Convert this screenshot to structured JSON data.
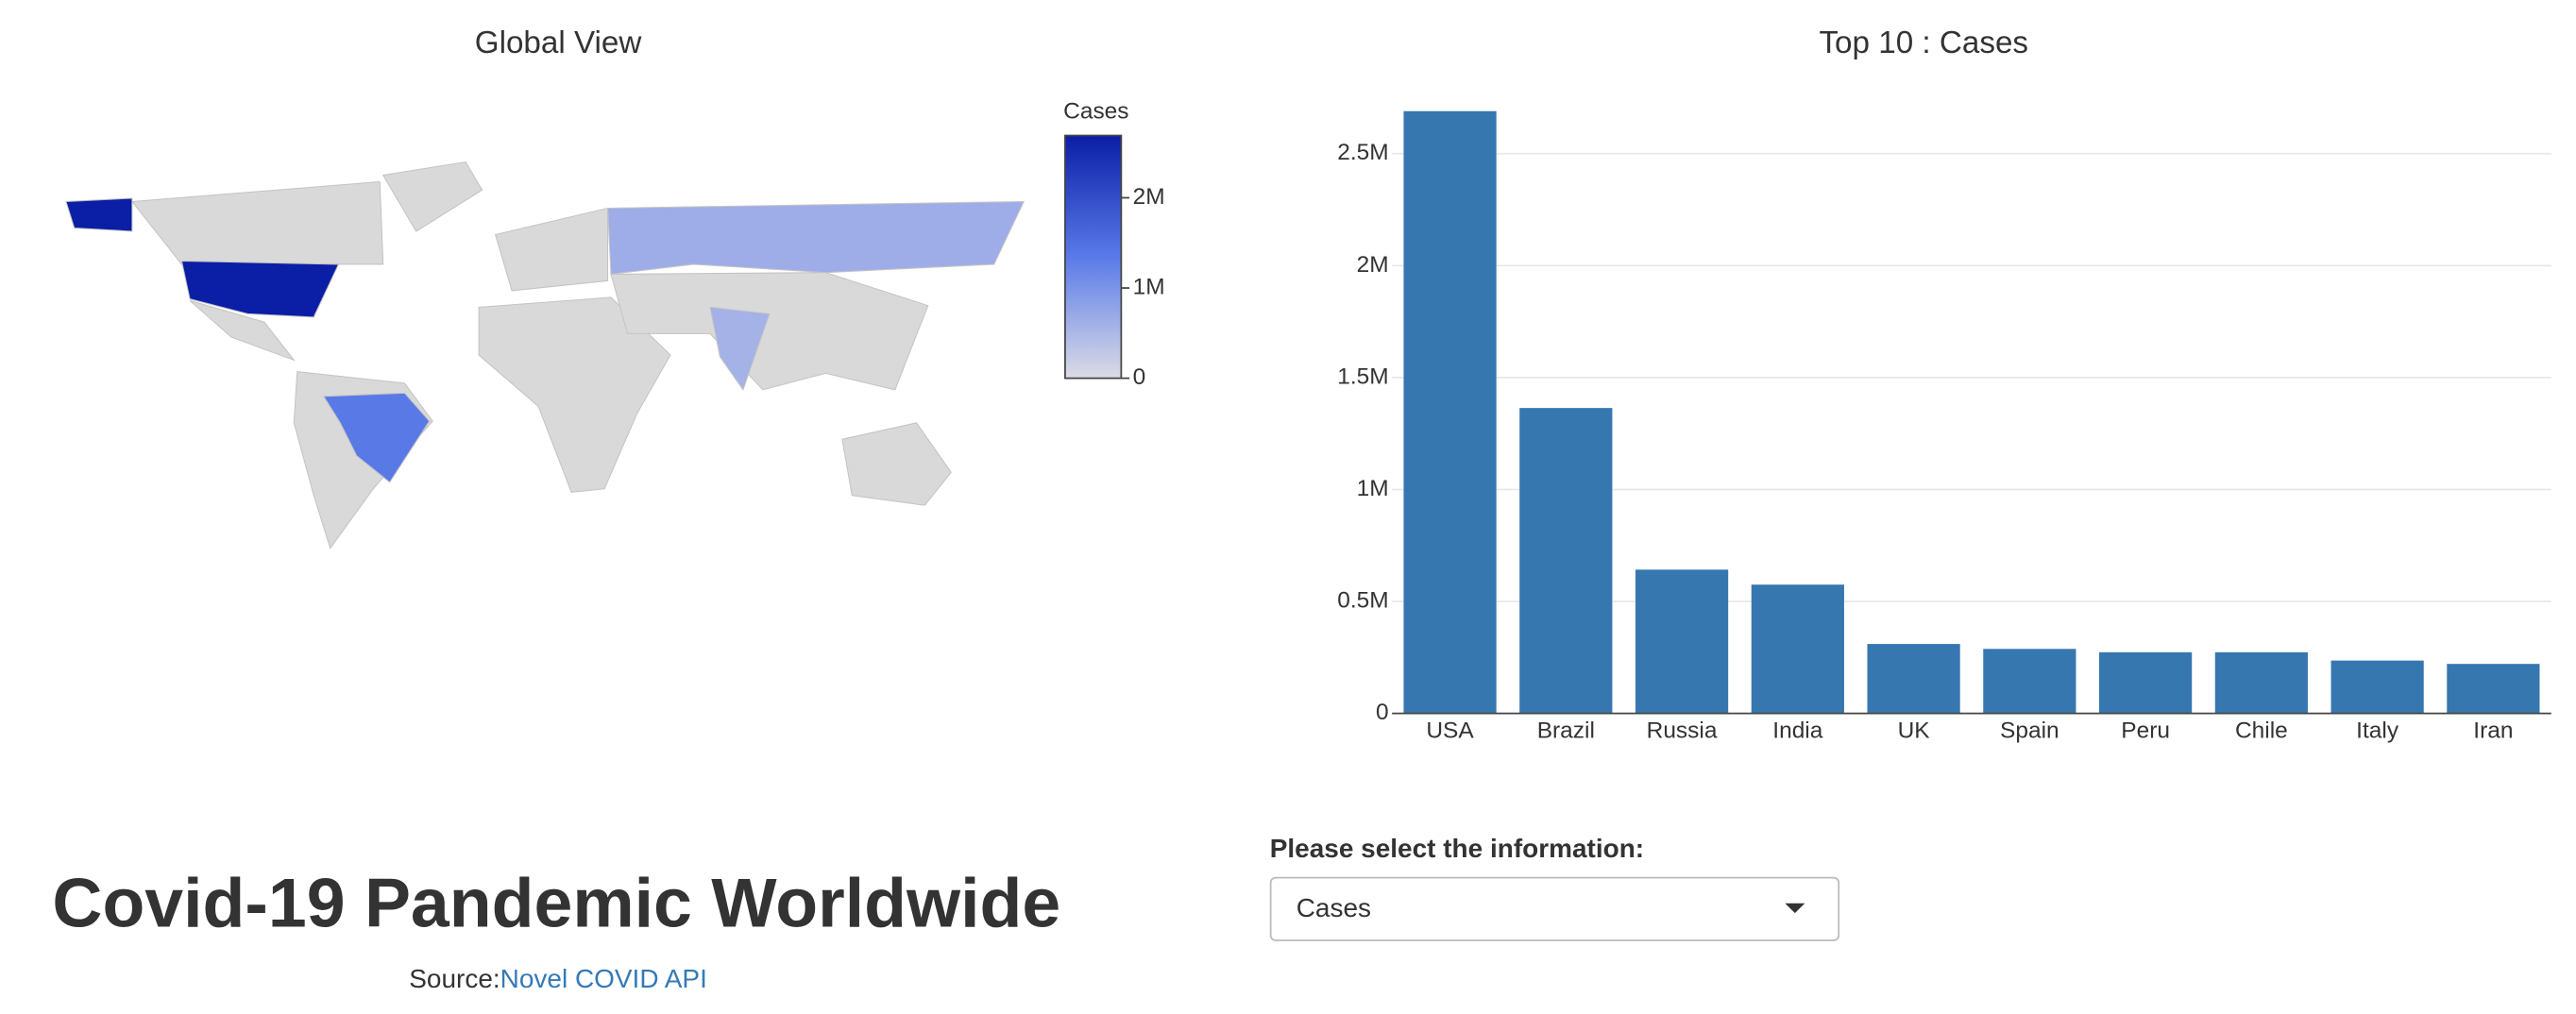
{
  "header": {
    "title": "Covid-19 Pandemic Worldwide",
    "source_prefix": "Source:",
    "source_link": "Novel COVID API"
  },
  "control": {
    "label": "Please select the information:",
    "selected": "Cases"
  },
  "chart_data": [
    {
      "type": "choropleth",
      "title": "Global View",
      "colorbar_title": "Cases",
      "zlim": [
        0,
        2690000
      ],
      "zticks": [
        0,
        {
          "value": 1000000,
          "label": "1M"
        },
        {
          "value": 2000000,
          "label": "2M"
        }
      ],
      "colorscale": [
        "#dcdce6",
        "#5a7ae8",
        "#0a1ea6"
      ]
    },
    {
      "type": "bar",
      "title": "Top 10 : Cases",
      "categories": [
        "USA",
        "Brazil",
        "Russia",
        "India",
        "UK",
        "Spain",
        "Peru",
        "Chile",
        "Italy",
        "Iran"
      ],
      "values": [
        2690000,
        1364000,
        642000,
        575000,
        310000,
        288000,
        273000,
        273000,
        236000,
        221000
      ],
      "color": "#3777b0",
      "ylim": [
        0,
        2817000
      ],
      "yticks": [
        0,
        {
          "value": 500000,
          "label": "0.5M"
        },
        {
          "value": 1000000,
          "label": "1M"
        },
        {
          "value": 1500000,
          "label": "1.5M"
        },
        {
          "value": 2000000,
          "label": "2M"
        },
        {
          "value": 2500000,
          "label": "2.5M"
        }
      ],
      "grid": true
    }
  ]
}
